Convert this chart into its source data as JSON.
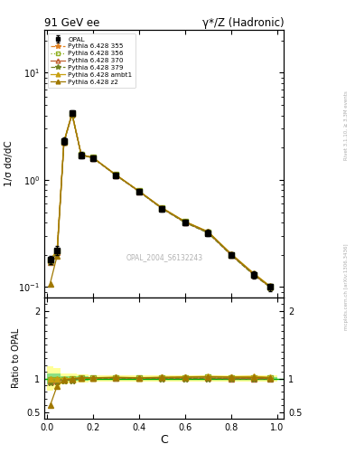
{
  "title_left": "91 GeV ee",
  "title_right": "γ*/Z (Hadronic)",
  "ylabel_main": "1/σ dσ/dC",
  "ylabel_ratio": "Ratio to OPAL",
  "xlabel": "C",
  "right_label_top": "Rivet 3.1.10, ≥ 3.3M events",
  "right_label_bottom": "mcplots.cern.ch [arXiv:1306.3436]",
  "watermark": "OPAL_2004_S6132243",
  "opal_x": [
    0.015,
    0.045,
    0.075,
    0.11,
    0.15,
    0.2,
    0.3,
    0.4,
    0.5,
    0.6,
    0.7,
    0.8,
    0.9,
    0.97
  ],
  "opal_y": [
    0.18,
    0.22,
    2.3,
    4.2,
    1.7,
    1.6,
    1.1,
    0.78,
    0.54,
    0.4,
    0.32,
    0.2,
    0.13,
    0.1
  ],
  "opal_yerr": [
    0.015,
    0.02,
    0.18,
    0.25,
    0.12,
    0.09,
    0.06,
    0.04,
    0.03,
    0.025,
    0.02,
    0.013,
    0.01,
    0.008
  ],
  "series": [
    {
      "label": "Pythia 6.428 355",
      "color": "#e08020",
      "linestyle": "--",
      "marker": "*",
      "markersize": 5,
      "x": [
        0.015,
        0.045,
        0.075,
        0.11,
        0.15,
        0.2,
        0.3,
        0.4,
        0.5,
        0.6,
        0.7,
        0.8,
        0.9,
        0.97
      ],
      "y": [
        0.175,
        0.215,
        2.26,
        4.13,
        1.715,
        1.615,
        1.115,
        0.787,
        0.548,
        0.408,
        0.328,
        0.203,
        0.132,
        0.1005
      ]
    },
    {
      "label": "Pythia 6.428 356",
      "color": "#90b020",
      "linestyle": ":",
      "marker": "s",
      "markersize": 4,
      "markerfacecolor": "none",
      "markeredgecolor": "#90b020",
      "x": [
        0.015,
        0.045,
        0.075,
        0.11,
        0.15,
        0.2,
        0.3,
        0.4,
        0.5,
        0.6,
        0.7,
        0.8,
        0.9,
        0.97
      ],
      "y": [
        0.176,
        0.216,
        2.27,
        4.15,
        1.712,
        1.612,
        1.112,
        0.784,
        0.545,
        0.405,
        0.325,
        0.201,
        0.131,
        0.1002
      ]
    },
    {
      "label": "Pythia 6.428 370",
      "color": "#c06030",
      "linestyle": "-",
      "marker": "^",
      "markersize": 4,
      "markerfacecolor": "none",
      "markeredgecolor": "#c06030",
      "x": [
        0.015,
        0.045,
        0.075,
        0.11,
        0.15,
        0.2,
        0.3,
        0.4,
        0.5,
        0.6,
        0.7,
        0.8,
        0.9,
        0.97
      ],
      "y": [
        0.172,
        0.212,
        2.25,
        4.1,
        1.708,
        1.608,
        1.108,
        0.782,
        0.542,
        0.402,
        0.322,
        0.2,
        0.13,
        0.1
      ]
    },
    {
      "label": "Pythia 6.428 379",
      "color": "#708020",
      "linestyle": "--",
      "marker": "*",
      "markersize": 5,
      "x": [
        0.015,
        0.045,
        0.075,
        0.11,
        0.15,
        0.2,
        0.3,
        0.4,
        0.5,
        0.6,
        0.7,
        0.8,
        0.9,
        0.97
      ],
      "y": [
        0.17,
        0.21,
        2.24,
        4.08,
        1.705,
        1.605,
        1.105,
        0.78,
        0.54,
        0.4,
        0.32,
        0.199,
        0.129,
        0.0995
      ]
    },
    {
      "label": "Pythia 6.428 ambt1",
      "color": "#c8a010",
      "linestyle": "-",
      "marker": "^",
      "markersize": 4,
      "x": [
        0.015,
        0.045,
        0.075,
        0.11,
        0.15,
        0.2,
        0.3,
        0.4,
        0.5,
        0.6,
        0.7,
        0.8,
        0.9,
        0.97
      ],
      "y": [
        0.18,
        0.22,
        2.295,
        4.2,
        1.72,
        1.62,
        1.12,
        0.79,
        0.55,
        0.41,
        0.33,
        0.205,
        0.134,
        0.102
      ]
    },
    {
      "label": "Pythia 6.428 z2",
      "color": "#a07800",
      "linestyle": "-",
      "marker": "^",
      "markersize": 4,
      "x": [
        0.015,
        0.045,
        0.075,
        0.11,
        0.15,
        0.2,
        0.3,
        0.4,
        0.5,
        0.6,
        0.7,
        0.8,
        0.9,
        0.97
      ],
      "y": [
        0.108,
        0.195,
        2.25,
        4.18,
        1.718,
        1.618,
        1.118,
        0.788,
        0.548,
        0.408,
        0.328,
        0.204,
        0.132,
        0.101
      ]
    }
  ],
  "ratio_series": [
    {
      "label": "Pythia 6.428 355",
      "color": "#e08020",
      "linestyle": "--",
      "marker": "*",
      "markersize": 5,
      "x": [
        0.015,
        0.045,
        0.075,
        0.11,
        0.15,
        0.2,
        0.3,
        0.4,
        0.5,
        0.6,
        0.7,
        0.8,
        0.9,
        0.97
      ],
      "y": [
        0.97,
        0.98,
        0.98,
        0.983,
        1.009,
        1.009,
        1.014,
        1.009,
        1.015,
        1.02,
        1.025,
        1.015,
        1.015,
        1.005
      ]
    },
    {
      "label": "Pythia 6.428 356",
      "color": "#90b020",
      "linestyle": ":",
      "marker": "s",
      "markersize": 4,
      "markerfacecolor": "none",
      "markeredgecolor": "#90b020",
      "x": [
        0.015,
        0.045,
        0.075,
        0.11,
        0.15,
        0.2,
        0.3,
        0.4,
        0.5,
        0.6,
        0.7,
        0.8,
        0.9,
        0.97
      ],
      "y": [
        0.978,
        0.982,
        0.987,
        0.988,
        1.007,
        1.007,
        1.011,
        1.005,
        1.009,
        1.013,
        1.016,
        1.005,
        1.008,
        1.002
      ]
    },
    {
      "label": "Pythia 6.428 370",
      "color": "#c06030",
      "linestyle": "-",
      "marker": "^",
      "markersize": 4,
      "markerfacecolor": "none",
      "markeredgecolor": "#c06030",
      "x": [
        0.015,
        0.045,
        0.075,
        0.11,
        0.15,
        0.2,
        0.3,
        0.4,
        0.5,
        0.6,
        0.7,
        0.8,
        0.9,
        0.97
      ],
      "y": [
        0.956,
        0.964,
        0.978,
        0.976,
        1.005,
        1.005,
        1.007,
        1.003,
        1.004,
        1.005,
        1.006,
        1.0,
        1.0,
        1.0
      ]
    },
    {
      "label": "Pythia 6.428 379",
      "color": "#708020",
      "linestyle": "--",
      "marker": "*",
      "markersize": 5,
      "x": [
        0.015,
        0.045,
        0.075,
        0.11,
        0.15,
        0.2,
        0.3,
        0.4,
        0.5,
        0.6,
        0.7,
        0.8,
        0.9,
        0.97
      ],
      "y": [
        0.944,
        0.955,
        0.974,
        0.971,
        1.003,
        1.003,
        1.005,
        1.003,
        1.0,
        1.0,
        1.0,
        0.995,
        0.992,
        0.995
      ]
    },
    {
      "label": "Pythia 6.428 ambt1",
      "color": "#c8a010",
      "linestyle": "-",
      "marker": "^",
      "markersize": 4,
      "x": [
        0.015,
        0.045,
        0.075,
        0.11,
        0.15,
        0.2,
        0.3,
        0.4,
        0.5,
        0.6,
        0.7,
        0.8,
        0.9,
        0.97
      ],
      "y": [
        1.0,
        1.0,
        0.998,
        1.0,
        1.012,
        1.012,
        1.018,
        1.013,
        1.019,
        1.025,
        1.031,
        1.025,
        1.031,
        1.02
      ]
    },
    {
      "label": "Pythia 6.428 z2",
      "color": "#a07800",
      "linestyle": "-",
      "marker": "^",
      "markersize": 4,
      "x": [
        0.015,
        0.045,
        0.075,
        0.11,
        0.15,
        0.2,
        0.3,
        0.4,
        0.5,
        0.6,
        0.7,
        0.8,
        0.9,
        0.97
      ],
      "y": [
        0.6,
        0.887,
        0.978,
        0.995,
        1.011,
        1.011,
        1.016,
        1.01,
        1.015,
        1.02,
        1.025,
        1.02,
        1.015,
        1.01
      ]
    }
  ],
  "opal_band_edges": [
    0.0,
    0.03,
    0.06,
    0.09,
    0.13,
    0.18,
    0.25,
    0.35,
    0.5,
    0.65,
    0.8,
    1.0
  ],
  "opal_band_inner_half": [
    0.08,
    0.07,
    0.04,
    0.035,
    0.03,
    0.025,
    0.025,
    0.025,
    0.025,
    0.025,
    0.025,
    0.025
  ],
  "opal_band_outer_half": [
    0.18,
    0.15,
    0.08,
    0.07,
    0.06,
    0.05,
    0.045,
    0.045,
    0.045,
    0.045,
    0.045,
    0.045
  ],
  "ylim_main": [
    0.08,
    25
  ],
  "ylim_ratio": [
    0.4,
    2.2
  ],
  "background_color": "#ffffff"
}
